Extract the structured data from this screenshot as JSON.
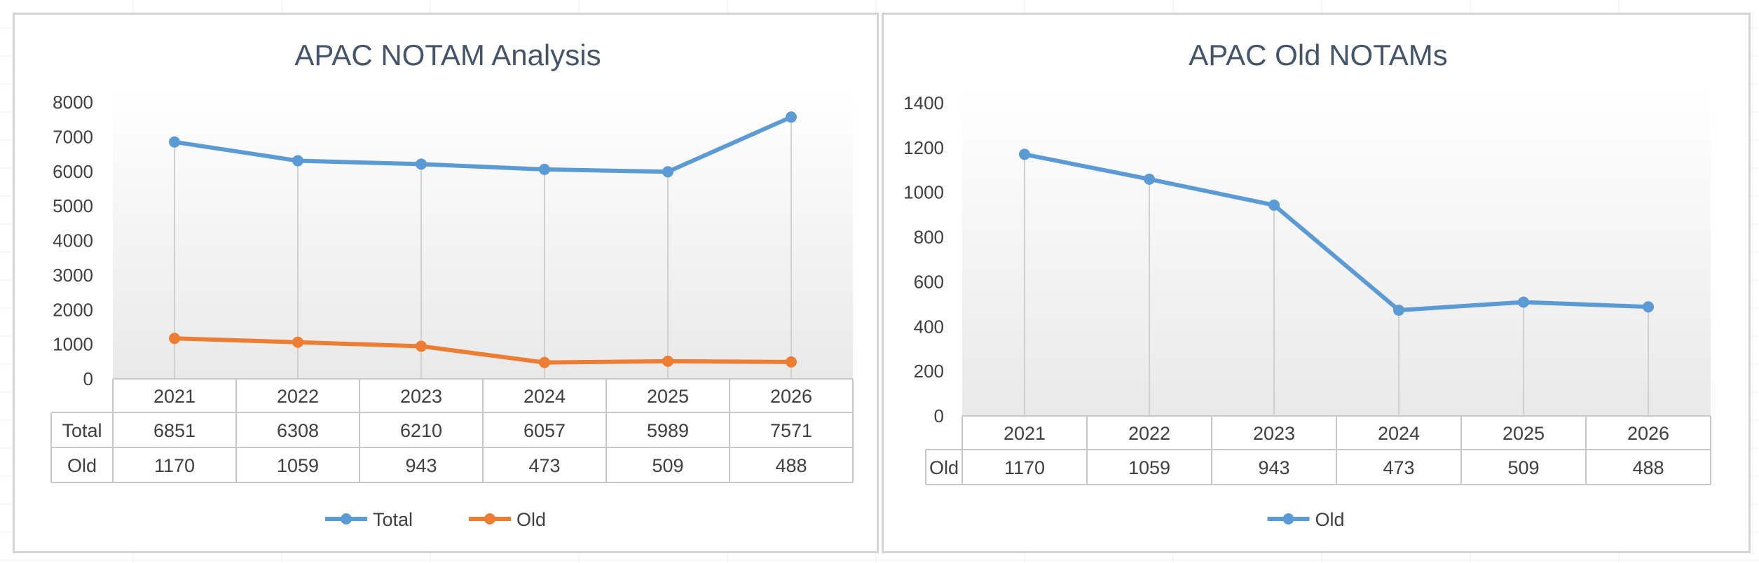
{
  "chart_data": [
    {
      "type": "line",
      "title": "APAC NOTAM Analysis",
      "categories": [
        "2021",
        "2022",
        "2023",
        "2024",
        "2025",
        "2026"
      ],
      "series": [
        {
          "name": "Total",
          "values": [
            6851,
            6308,
            6210,
            6057,
            5989,
            7571
          ],
          "color": "#5b9bd5"
        },
        {
          "name": "Old",
          "values": [
            1170,
            1059,
            943,
            473,
            509,
            488
          ],
          "color": "#ed7d31"
        }
      ],
      "ylim": [
        0,
        8000
      ],
      "yticks": [
        0,
        1000,
        2000,
        3000,
        4000,
        5000,
        6000,
        7000,
        8000
      ],
      "data_table": true,
      "legend": "bottom",
      "drop_lines": true
    },
    {
      "type": "line",
      "title": "APAC Old NOTAMs",
      "categories": [
        "2021",
        "2022",
        "2023",
        "2024",
        "2025",
        "2026"
      ],
      "series": [
        {
          "name": "Old",
          "values": [
            1170,
            1059,
            943,
            473,
            509,
            488
          ],
          "color": "#5b9bd5"
        }
      ],
      "ylim": [
        0,
        1400
      ],
      "yticks": [
        0,
        200,
        400,
        600,
        800,
        1000,
        1200,
        1400
      ],
      "data_table": true,
      "legend": "bottom",
      "drop_lines": true
    }
  ]
}
